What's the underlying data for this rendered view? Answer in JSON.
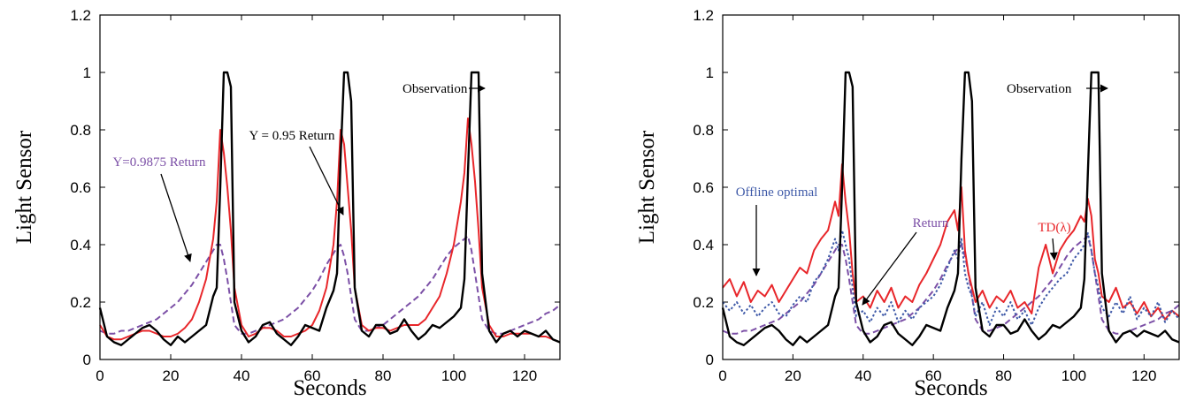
{
  "chart_data": [
    {
      "type": "line",
      "xlabel": "Seconds",
      "ylabel": "Light Sensor",
      "xlim": [
        0,
        130
      ],
      "ylim": [
        0,
        1.2
      ],
      "xticks": [
        0,
        20,
        40,
        60,
        80,
        100,
        120
      ],
      "yticks": [
        0,
        0.2,
        0.4,
        0.6,
        0.8,
        1,
        1.2
      ],
      "x": [
        0,
        2,
        4,
        6,
        8,
        10,
        12,
        14,
        16,
        18,
        20,
        22,
        24,
        26,
        28,
        30,
        32,
        33,
        34,
        35,
        36,
        37,
        38,
        40,
        42,
        44,
        46,
        48,
        50,
        52,
        54,
        56,
        58,
        60,
        62,
        64,
        66,
        67,
        68,
        69,
        70,
        71,
        72,
        74,
        76,
        78,
        80,
        82,
        84,
        86,
        88,
        90,
        92,
        94,
        96,
        98,
        100,
        102,
        103,
        104,
        105,
        106,
        107,
        108,
        110,
        112,
        114,
        116,
        118,
        120,
        122,
        124,
        126,
        128,
        130
      ],
      "series": [
        {
          "color": "#7b4fa6",
          "dash": "dashed",
          "values": [
            0.1,
            0.09,
            0.09,
            0.1,
            0.1,
            0.11,
            0.12,
            0.13,
            0.14,
            0.16,
            0.18,
            0.2,
            0.23,
            0.26,
            0.3,
            0.34,
            0.38,
            0.4,
            0.4,
            0.35,
            0.28,
            0.2,
            0.12,
            0.09,
            0.09,
            0.1,
            0.11,
            0.12,
            0.13,
            0.14,
            0.16,
            0.18,
            0.21,
            0.24,
            0.28,
            0.33,
            0.37,
            0.39,
            0.4,
            0.36,
            0.3,
            0.22,
            0.14,
            0.1,
            0.1,
            0.11,
            0.12,
            0.14,
            0.16,
            0.18,
            0.2,
            0.22,
            0.25,
            0.28,
            0.32,
            0.36,
            0.39,
            0.41,
            0.42,
            0.43,
            0.38,
            0.3,
            0.22,
            0.14,
            0.1,
            0.09,
            0.09,
            0.1,
            0.11,
            0.12,
            0.13,
            0.14,
            0.16,
            0.17,
            0.19
          ]
        },
        {
          "color": "#e8262a",
          "dash": "solid",
          "values": [
            0.12,
            0.08,
            0.07,
            0.07,
            0.08,
            0.09,
            0.1,
            0.1,
            0.09,
            0.08,
            0.08,
            0.09,
            0.11,
            0.14,
            0.2,
            0.28,
            0.42,
            0.55,
            0.8,
            0.72,
            0.6,
            0.45,
            0.25,
            0.12,
            0.08,
            0.09,
            0.11,
            0.11,
            0.1,
            0.08,
            0.08,
            0.09,
            0.1,
            0.12,
            0.17,
            0.25,
            0.4,
            0.55,
            0.8,
            0.75,
            0.6,
            0.45,
            0.25,
            0.12,
            0.1,
            0.11,
            0.11,
            0.1,
            0.11,
            0.12,
            0.12,
            0.12,
            0.14,
            0.18,
            0.22,
            0.3,
            0.4,
            0.55,
            0.65,
            0.84,
            0.75,
            0.62,
            0.45,
            0.25,
            0.12,
            0.08,
            0.08,
            0.09,
            0.09,
            0.09,
            0.09,
            0.08,
            0.08,
            0.07,
            0.06
          ]
        },
        {
          "color": "#000000",
          "dash": "solid",
          "values": [
            0.18,
            0.08,
            0.06,
            0.05,
            0.07,
            0.09,
            0.11,
            0.12,
            0.1,
            0.07,
            0.05,
            0.08,
            0.06,
            0.08,
            0.1,
            0.12,
            0.22,
            0.25,
            0.6,
            1,
            1,
            0.95,
            0.2,
            0.1,
            0.06,
            0.08,
            0.12,
            0.13,
            0.09,
            0.07,
            0.05,
            0.08,
            0.12,
            0.11,
            0.1,
            0.18,
            0.24,
            0.3,
            0.7,
            1,
            1,
            0.9,
            0.25,
            0.1,
            0.08,
            0.12,
            0.12,
            0.09,
            0.1,
            0.14,
            0.1,
            0.07,
            0.09,
            0.12,
            0.11,
            0.13,
            0.15,
            0.18,
            0.28,
            0.65,
            1,
            1,
            1,
            0.3,
            0.1,
            0.06,
            0.09,
            0.1,
            0.08,
            0.1,
            0.09,
            0.08,
            0.1,
            0.07,
            0.06
          ]
        }
      ],
      "annotations": [
        {
          "text": "Observation",
          "color": "#000000"
        },
        {
          "text": "Υ = 0.95 Return",
          "color": "#000000"
        },
        {
          "text": "Υ=0.9875 Return",
          "color": "#7b4fa6"
        }
      ]
    },
    {
      "type": "line",
      "xlabel": "Seconds",
      "ylabel": "Light Sensor",
      "xlim": [
        0,
        130
      ],
      "ylim": [
        0,
        1.2
      ],
      "xticks": [
        0,
        20,
        40,
        60,
        80,
        100,
        120
      ],
      "yticks": [
        0,
        0.2,
        0.4,
        0.6,
        0.8,
        1,
        1.2
      ],
      "x": [
        0,
        2,
        4,
        6,
        8,
        10,
        12,
        14,
        16,
        18,
        20,
        22,
        24,
        26,
        28,
        30,
        32,
        33,
        34,
        35,
        36,
        37,
        38,
        40,
        42,
        44,
        46,
        48,
        50,
        52,
        54,
        56,
        58,
        60,
        62,
        64,
        66,
        67,
        68,
        69,
        70,
        71,
        72,
        74,
        76,
        78,
        80,
        82,
        84,
        86,
        88,
        90,
        92,
        94,
        96,
        98,
        100,
        102,
        103,
        104,
        105,
        106,
        107,
        108,
        110,
        112,
        114,
        116,
        118,
        120,
        122,
        124,
        126,
        128,
        130
      ],
      "series": [
        {
          "color": "#7b4fa6",
          "dash": "dashed",
          "values": [
            0.1,
            0.09,
            0.09,
            0.1,
            0.1,
            0.11,
            0.12,
            0.13,
            0.14,
            0.16,
            0.18,
            0.2,
            0.23,
            0.26,
            0.3,
            0.34,
            0.38,
            0.4,
            0.4,
            0.35,
            0.28,
            0.2,
            0.12,
            0.09,
            0.09,
            0.1,
            0.11,
            0.12,
            0.13,
            0.14,
            0.16,
            0.18,
            0.21,
            0.24,
            0.28,
            0.33,
            0.37,
            0.39,
            0.4,
            0.36,
            0.3,
            0.22,
            0.14,
            0.1,
            0.1,
            0.11,
            0.12,
            0.14,
            0.16,
            0.18,
            0.2,
            0.22,
            0.25,
            0.28,
            0.32,
            0.36,
            0.39,
            0.41,
            0.42,
            0.43,
            0.38,
            0.3,
            0.22,
            0.14,
            0.1,
            0.09,
            0.09,
            0.1,
            0.11,
            0.12,
            0.13,
            0.14,
            0.16,
            0.17,
            0.19
          ]
        },
        {
          "color": "#e8262a",
          "dash": "solid",
          "values": [
            0.25,
            0.28,
            0.22,
            0.27,
            0.2,
            0.24,
            0.22,
            0.26,
            0.2,
            0.24,
            0.28,
            0.32,
            0.3,
            0.38,
            0.42,
            0.45,
            0.55,
            0.5,
            0.68,
            0.55,
            0.45,
            0.3,
            0.2,
            0.22,
            0.18,
            0.24,
            0.2,
            0.25,
            0.18,
            0.22,
            0.2,
            0.26,
            0.3,
            0.35,
            0.4,
            0.48,
            0.52,
            0.45,
            0.6,
            0.38,
            0.3,
            0.25,
            0.2,
            0.24,
            0.18,
            0.22,
            0.2,
            0.24,
            0.18,
            0.2,
            0.16,
            0.32,
            0.4,
            0.3,
            0.38,
            0.42,
            0.45,
            0.5,
            0.48,
            0.56,
            0.5,
            0.35,
            0.3,
            0.22,
            0.2,
            0.25,
            0.18,
            0.2,
            0.16,
            0.2,
            0.15,
            0.18,
            0.14,
            0.17,
            0.15
          ]
        },
        {
          "color": "#3f5aa8",
          "dash": "dotted",
          "values": [
            0.2,
            0.17,
            0.2,
            0.16,
            0.19,
            0.15,
            0.18,
            0.2,
            0.16,
            0.15,
            0.19,
            0.22,
            0.2,
            0.27,
            0.3,
            0.35,
            0.42,
            0.38,
            0.45,
            0.4,
            0.35,
            0.25,
            0.15,
            0.17,
            0.13,
            0.18,
            0.15,
            0.2,
            0.13,
            0.17,
            0.14,
            0.18,
            0.2,
            0.22,
            0.26,
            0.32,
            0.38,
            0.35,
            0.42,
            0.3,
            0.25,
            0.22,
            0.15,
            0.2,
            0.12,
            0.18,
            0.15,
            0.2,
            0.14,
            0.17,
            0.12,
            0.18,
            0.22,
            0.25,
            0.28,
            0.3,
            0.35,
            0.38,
            0.4,
            0.44,
            0.38,
            0.3,
            0.25,
            0.18,
            0.15,
            0.2,
            0.16,
            0.22,
            0.14,
            0.18,
            0.15,
            0.2,
            0.13,
            0.17,
            0.14
          ]
        },
        {
          "color": "#000000",
          "dash": "solid",
          "values": [
            0.18,
            0.08,
            0.06,
            0.05,
            0.07,
            0.09,
            0.11,
            0.12,
            0.1,
            0.07,
            0.05,
            0.08,
            0.06,
            0.08,
            0.1,
            0.12,
            0.22,
            0.25,
            0.6,
            1,
            1,
            0.95,
            0.2,
            0.1,
            0.06,
            0.08,
            0.12,
            0.13,
            0.09,
            0.07,
            0.05,
            0.08,
            0.12,
            0.11,
            0.1,
            0.18,
            0.24,
            0.3,
            0.7,
            1,
            1,
            0.9,
            0.25,
            0.1,
            0.08,
            0.12,
            0.12,
            0.09,
            0.1,
            0.14,
            0.1,
            0.07,
            0.09,
            0.12,
            0.11,
            0.13,
            0.15,
            0.18,
            0.28,
            0.65,
            1,
            1,
            1,
            0.3,
            0.1,
            0.06,
            0.09,
            0.1,
            0.08,
            0.1,
            0.09,
            0.08,
            0.1,
            0.07,
            0.06
          ]
        }
      ],
      "annotations": [
        {
          "text": "Observation",
          "color": "#000000"
        },
        {
          "text": "Offline optimal",
          "color": "#3f5aa8"
        },
        {
          "text": "Return",
          "color": "#7b4fa6"
        },
        {
          "text": "TD(λ)",
          "color": "#e8262a"
        }
      ]
    }
  ]
}
